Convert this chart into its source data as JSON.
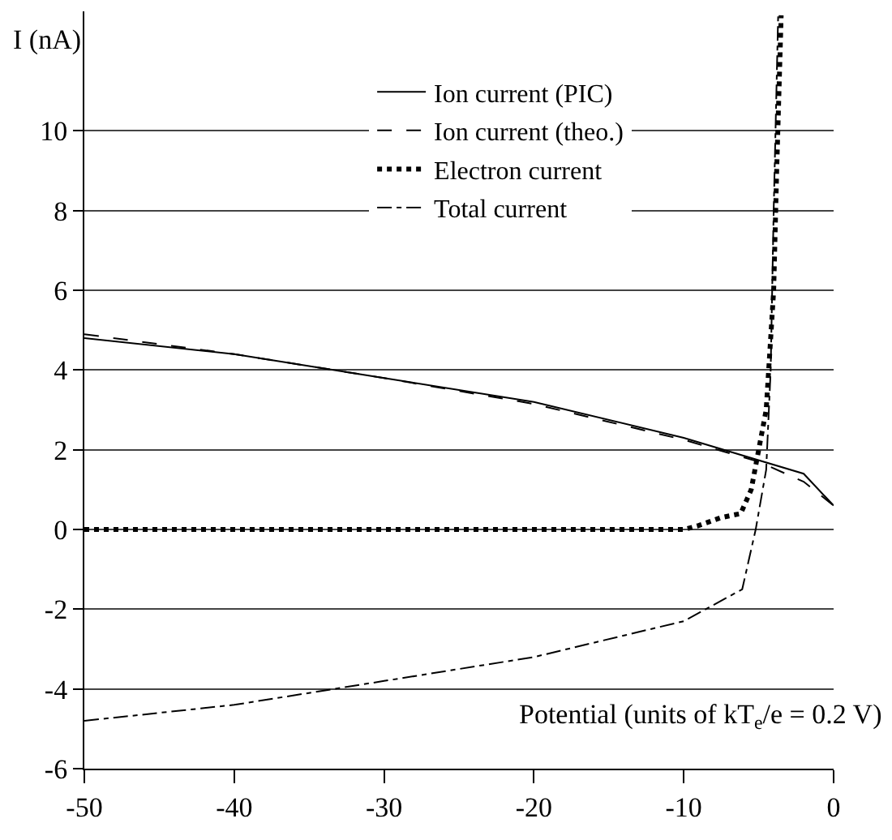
{
  "chart_data": {
    "type": "line",
    "xlabel": "Potential (units of kT$_{e}$/e = 0.2 V)",
    "ylabel": "I (nA)",
    "xlim": [
      -50,
      0
    ],
    "xticks": [
      -50,
      -40,
      -30,
      -20,
      -10,
      0
    ],
    "ylim": [
      -6,
      13
    ],
    "yticks": [
      -6,
      -4,
      -2,
      0,
      2,
      4,
      6,
      8,
      10
    ],
    "grid": "y",
    "legend": "top",
    "marker": "none",
    "series": [
      {
        "name": "Ion current (PIC)",
        "color": "#000000",
        "line_style": "solid",
        "x": [
          -50,
          -40,
          -30,
          -20,
          -10,
          -2,
          0
        ],
        "values": [
          4.8,
          4.4,
          3.8,
          3.2,
          2.3,
          1.4,
          0.6
        ]
      },
      {
        "name": "Ion current (theo.)",
        "color": "#000000",
        "line_style": "dashed",
        "x": [
          -50,
          -40,
          -30,
          -20,
          -10,
          -5,
          -2,
          0
        ],
        "values": [
          4.9,
          4.4,
          3.8,
          3.15,
          2.25,
          1.7,
          1.2,
          0.6
        ]
      },
      {
        "name": "Electron current",
        "color": "#000000",
        "line_style": "dotted",
        "x": [
          -50,
          -10,
          -9,
          -7.5,
          -6.2,
          -5.5,
          -5,
          -4.5,
          -4,
          -3.8,
          -3.5
        ],
        "values": [
          0,
          0,
          0.1,
          0.3,
          0.4,
          1,
          2,
          3,
          6,
          9,
          12.9
        ]
      },
      {
        "name": "Total current",
        "color": "#000000",
        "line_style": "dashdot",
        "x": [
          -50,
          -40,
          -30,
          -20,
          -10,
          -6.1,
          -5.2,
          -4.5,
          -4.2,
          -4,
          -3.7
        ],
        "values": [
          -4.8,
          -4.4,
          -3.8,
          -3.2,
          -2.3,
          -1.5,
          0,
          1.5,
          4,
          8,
          12.9
        ]
      }
    ]
  }
}
